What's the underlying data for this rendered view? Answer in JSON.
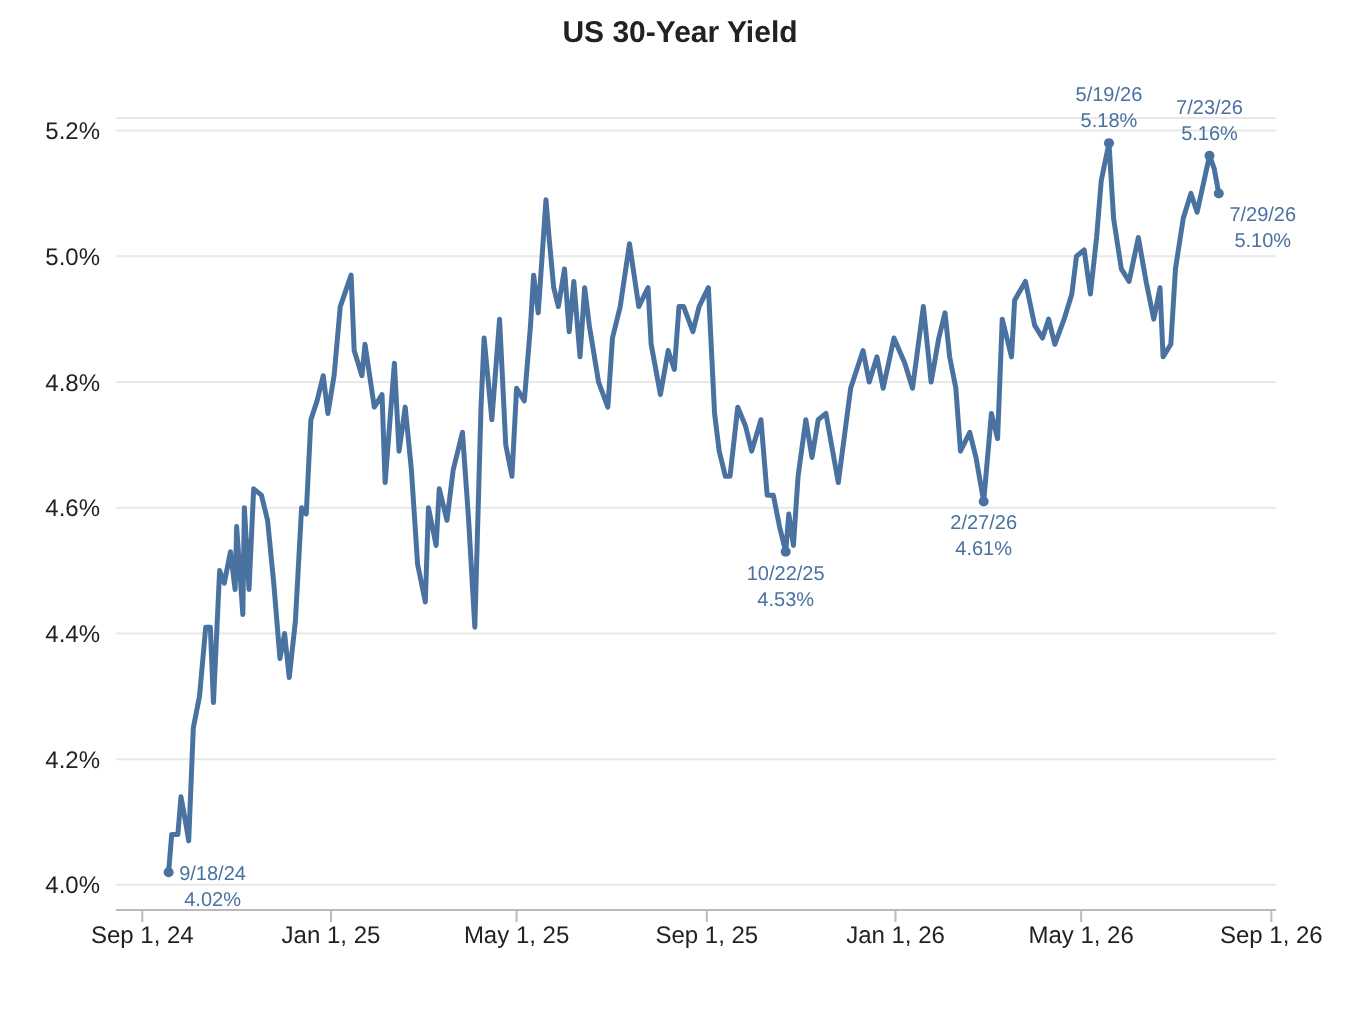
{
  "chart_data": {
    "type": "line",
    "title": "US 30-Year Yield",
    "x": [
      "2024-09-18",
      "2024-09-20",
      "2024-09-24",
      "2024-09-26",
      "2024-09-29",
      "2024-10-01",
      "2024-10-04",
      "2024-10-08",
      "2024-10-12",
      "2024-10-15",
      "2024-10-17",
      "2024-10-21",
      "2024-10-24",
      "2024-10-28",
      "2024-10-31",
      "2024-11-01",
      "2024-11-05",
      "2024-11-06",
      "2024-11-09",
      "2024-11-12",
      "2024-11-17",
      "2024-11-21",
      "2024-11-25",
      "2024-11-29",
      "2024-12-02",
      "2024-12-05",
      "2024-12-09",
      "2024-12-13",
      "2024-12-16",
      "2024-12-19",
      "2024-12-23",
      "2024-12-27",
      "2024-12-30",
      "2025-01-03",
      "2025-01-07",
      "2025-01-14",
      "2025-01-16",
      "2025-01-21",
      "2025-01-23",
      "2025-01-29",
      "2025-02-03",
      "2025-02-05",
      "2025-02-11",
      "2025-02-14",
      "2025-02-18",
      "2025-02-22",
      "2025-02-26",
      "2025-03-03",
      "2025-03-05",
      "2025-03-10",
      "2025-03-12",
      "2025-03-17",
      "2025-03-21",
      "2025-03-27",
      "2025-03-31",
      "2025-04-04",
      "2025-04-08",
      "2025-04-10",
      "2025-04-15",
      "2025-04-20",
      "2025-04-24",
      "2025-04-28",
      "2025-05-01",
      "2025-05-06",
      "2025-05-10",
      "2025-05-12",
      "2025-05-15",
      "2025-05-20",
      "2025-05-22",
      "2025-05-25",
      "2025-05-28",
      "2025-06-01",
      "2025-06-04",
      "2025-06-07",
      "2025-06-11",
      "2025-06-14",
      "2025-06-17",
      "2025-06-23",
      "2025-06-29",
      "2025-07-02",
      "2025-07-07",
      "2025-07-13",
      "2025-07-19",
      "2025-07-25",
      "2025-07-27",
      "2025-08-02",
      "2025-08-07",
      "2025-08-11",
      "2025-08-14",
      "2025-08-17",
      "2025-08-23",
      "2025-08-27",
      "2025-09-02",
      "2025-09-06",
      "2025-09-09",
      "2025-09-13",
      "2025-09-16",
      "2025-09-21",
      "2025-09-26",
      "2025-09-30",
      "2025-10-06",
      "2025-10-10",
      "2025-10-14",
      "2025-10-18",
      "2025-10-22",
      "2025-10-24",
      "2025-10-27",
      "2025-10-30",
      "2025-11-04",
      "2025-11-08",
      "2025-11-12",
      "2025-11-17",
      "2025-11-25",
      "2025-12-03",
      "2025-12-11",
      "2025-12-15",
      "2025-12-20",
      "2025-12-24",
      "2025-12-31",
      "2026-01-07",
      "2026-01-12",
      "2026-01-19",
      "2026-01-24",
      "2026-01-29",
      "2026-02-02",
      "2026-02-05",
      "2026-02-09",
      "2026-02-12",
      "2026-02-18",
      "2026-02-22",
      "2026-02-27",
      "2026-03-04",
      "2026-03-08",
      "2026-03-11",
      "2026-03-17",
      "2026-03-19",
      "2026-03-26",
      "2026-04-01",
      "2026-04-06",
      "2026-04-10",
      "2026-04-14",
      "2026-04-20",
      "2026-04-25",
      "2026-04-28",
      "2026-05-03",
      "2026-05-07",
      "2026-05-11",
      "2026-05-14",
      "2026-05-19",
      "2026-05-22",
      "2026-05-27",
      "2026-06-01",
      "2026-06-07",
      "2026-06-12",
      "2026-06-17",
      "2026-06-21",
      "2026-06-23",
      "2026-06-28",
      "2026-07-01",
      "2026-07-06",
      "2026-07-11",
      "2026-07-15",
      "2026-07-23",
      "2026-07-26",
      "2026-07-29"
    ],
    "series": [
      {
        "color": "#4a72a0",
        "values": [
          4.02,
          4.08,
          4.08,
          4.14,
          4.1,
          4.07,
          4.25,
          4.3,
          4.41,
          4.41,
          4.29,
          4.5,
          4.48,
          4.53,
          4.47,
          4.57,
          4.43,
          4.6,
          4.47,
          4.63,
          4.62,
          4.58,
          4.48,
          4.36,
          4.4,
          4.33,
          4.42,
          4.6,
          4.59,
          4.74,
          4.77,
          4.81,
          4.75,
          4.81,
          4.92,
          4.97,
          4.85,
          4.81,
          4.86,
          4.76,
          4.78,
          4.64,
          4.83,
          4.69,
          4.76,
          4.66,
          4.51,
          4.45,
          4.6,
          4.54,
          4.63,
          4.58,
          4.66,
          4.72,
          4.58,
          4.41,
          4.76,
          4.87,
          4.74,
          4.9,
          4.7,
          4.65,
          4.79,
          4.77,
          4.89,
          4.97,
          4.91,
          5.09,
          5.03,
          4.95,
          4.92,
          4.98,
          4.88,
          4.96,
          4.84,
          4.95,
          4.89,
          4.8,
          4.76,
          4.87,
          4.92,
          5.02,
          4.92,
          4.95,
          4.86,
          4.78,
          4.85,
          4.82,
          4.92,
          4.92,
          4.88,
          4.92,
          4.95,
          4.75,
          4.69,
          4.65,
          4.65,
          4.76,
          4.73,
          4.69,
          4.74,
          4.62,
          4.62,
          4.57,
          4.53,
          4.59,
          4.54,
          4.65,
          4.74,
          4.68,
          4.74,
          4.75,
          4.64,
          4.79,
          4.85,
          4.8,
          4.84,
          4.79,
          4.87,
          4.83,
          4.79,
          4.92,
          4.8,
          4.87,
          4.91,
          4.84,
          4.79,
          4.69,
          4.72,
          4.68,
          4.61,
          4.75,
          4.71,
          4.9,
          4.84,
          4.93,
          4.96,
          4.89,
          4.87,
          4.9,
          4.86,
          4.9,
          4.94,
          5.0,
          5.01,
          4.94,
          5.03,
          5.12,
          5.18,
          5.06,
          4.98,
          4.96,
          5.03,
          4.96,
          4.9,
          4.95,
          4.84,
          4.86,
          4.98,
          5.06,
          5.1,
          5.07,
          5.16,
          5.14,
          5.1
        ]
      }
    ],
    "xlim": [
      "2024-08-15",
      "2026-09-04"
    ],
    "xticks": [
      {
        "value": "2024-09-01",
        "label": "Sep 1, 24"
      },
      {
        "value": "2025-01-01",
        "label": "Jan 1, 25"
      },
      {
        "value": "2025-05-01",
        "label": "May 1, 25"
      },
      {
        "value": "2025-09-01",
        "label": "Sep 1, 25"
      },
      {
        "value": "2026-01-01",
        "label": "Jan 1, 26"
      },
      {
        "value": "2026-05-01",
        "label": "May 1, 26"
      },
      {
        "value": "2026-09-01",
        "label": "Sep 1, 26"
      }
    ],
    "ylim": [
      3.96,
      5.22
    ],
    "yticks": [
      {
        "value": 4.0,
        "label": "4.0%"
      },
      {
        "value": 4.2,
        "label": "4.2%"
      },
      {
        "value": 4.4,
        "label": "4.4%"
      },
      {
        "value": 4.6,
        "label": "4.6%"
      },
      {
        "value": 4.8,
        "label": "4.8%"
      },
      {
        "value": 5.0,
        "label": "5.0%"
      },
      {
        "value": 5.2,
        "label": "5.2%"
      }
    ],
    "grid": "y",
    "legend": false,
    "marker": "none",
    "line_style": "solid",
    "annotations": [
      {
        "text": "9/18/24\n4.02%",
        "x": "2024-09-18",
        "y": 4.02
      },
      {
        "text": "10/22/25\n4.53%",
        "x": "2025-10-22",
        "y": 4.53
      },
      {
        "text": "2/27/26\n4.61%",
        "x": "2026-02-27",
        "y": 4.61
      },
      {
        "text": "5/19/26\n5.18%",
        "x": "2026-05-19",
        "y": 5.18
      },
      {
        "text": "7/23/26\n5.16%",
        "x": "2026-07-23",
        "y": 5.16
      },
      {
        "text": "7/29/26\n5.10%",
        "x": "2026-07-29",
        "y": 5.1
      }
    ]
  }
}
